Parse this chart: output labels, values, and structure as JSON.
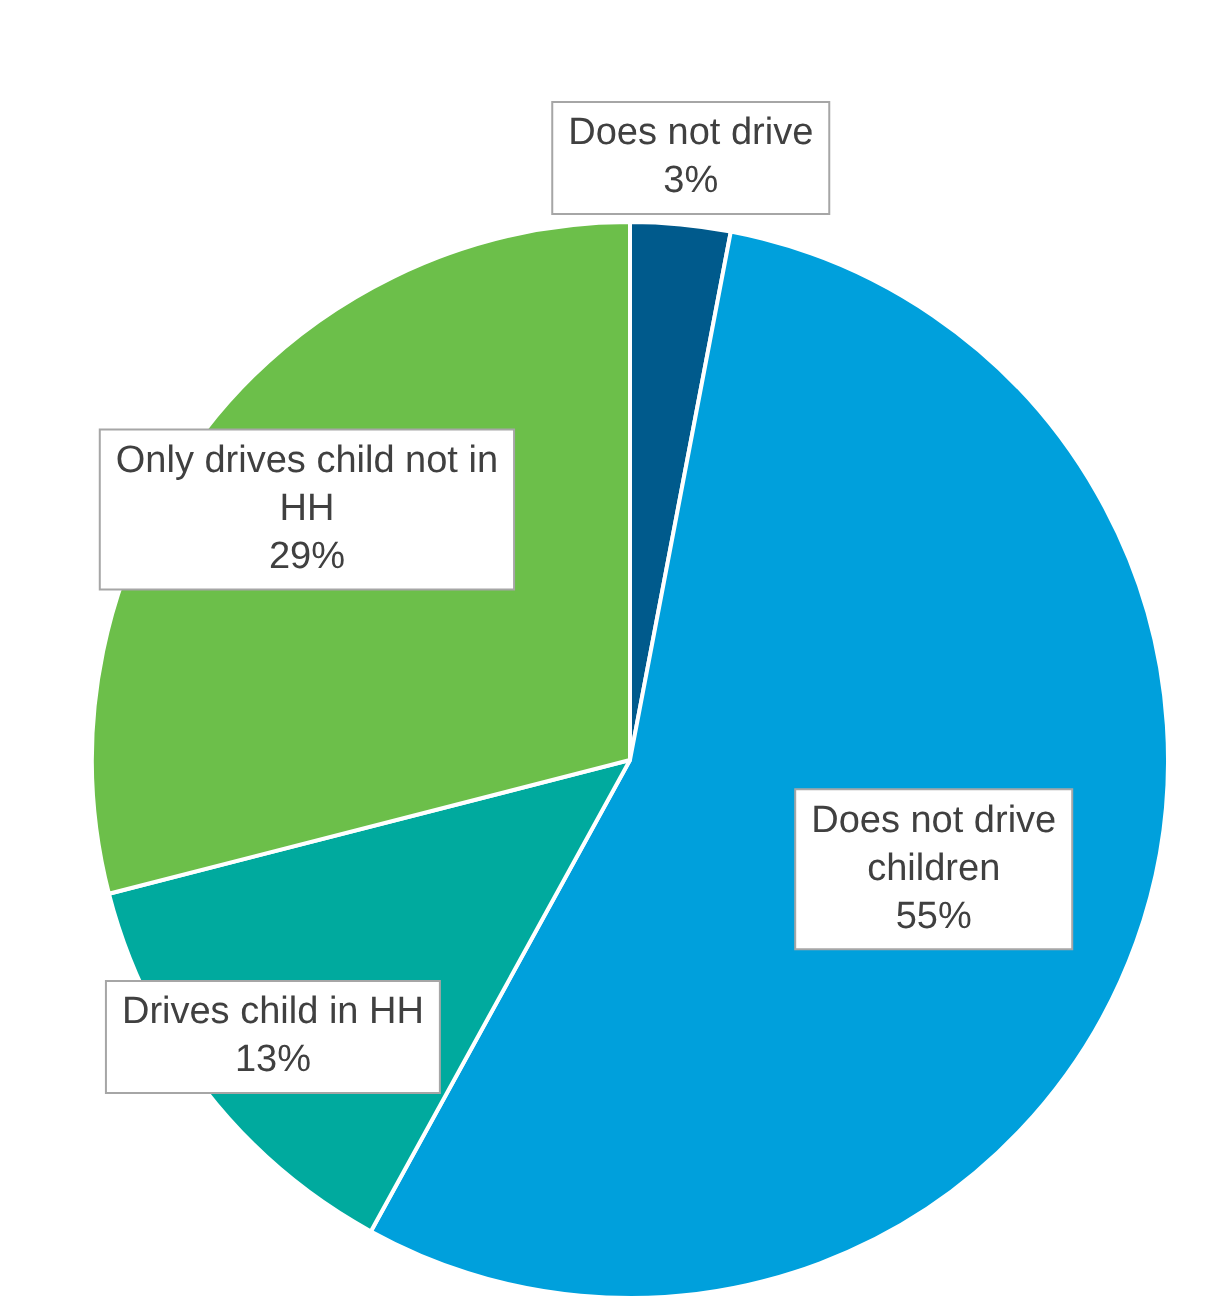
{
  "chart_data": {
    "type": "pie",
    "categories": [
      "Does not drive",
      "Does not drive children",
      "Drives child in HH",
      "Only drives child not in HH"
    ],
    "values": [
      3,
      55,
      13,
      29
    ],
    "colors": [
      "#005a8c",
      "#00a0dc",
      "#00aa9e",
      "#6cbf4a"
    ],
    "value_labels": [
      "3%",
      "55%",
      "13%",
      "29%"
    ],
    "legend": false
  }
}
